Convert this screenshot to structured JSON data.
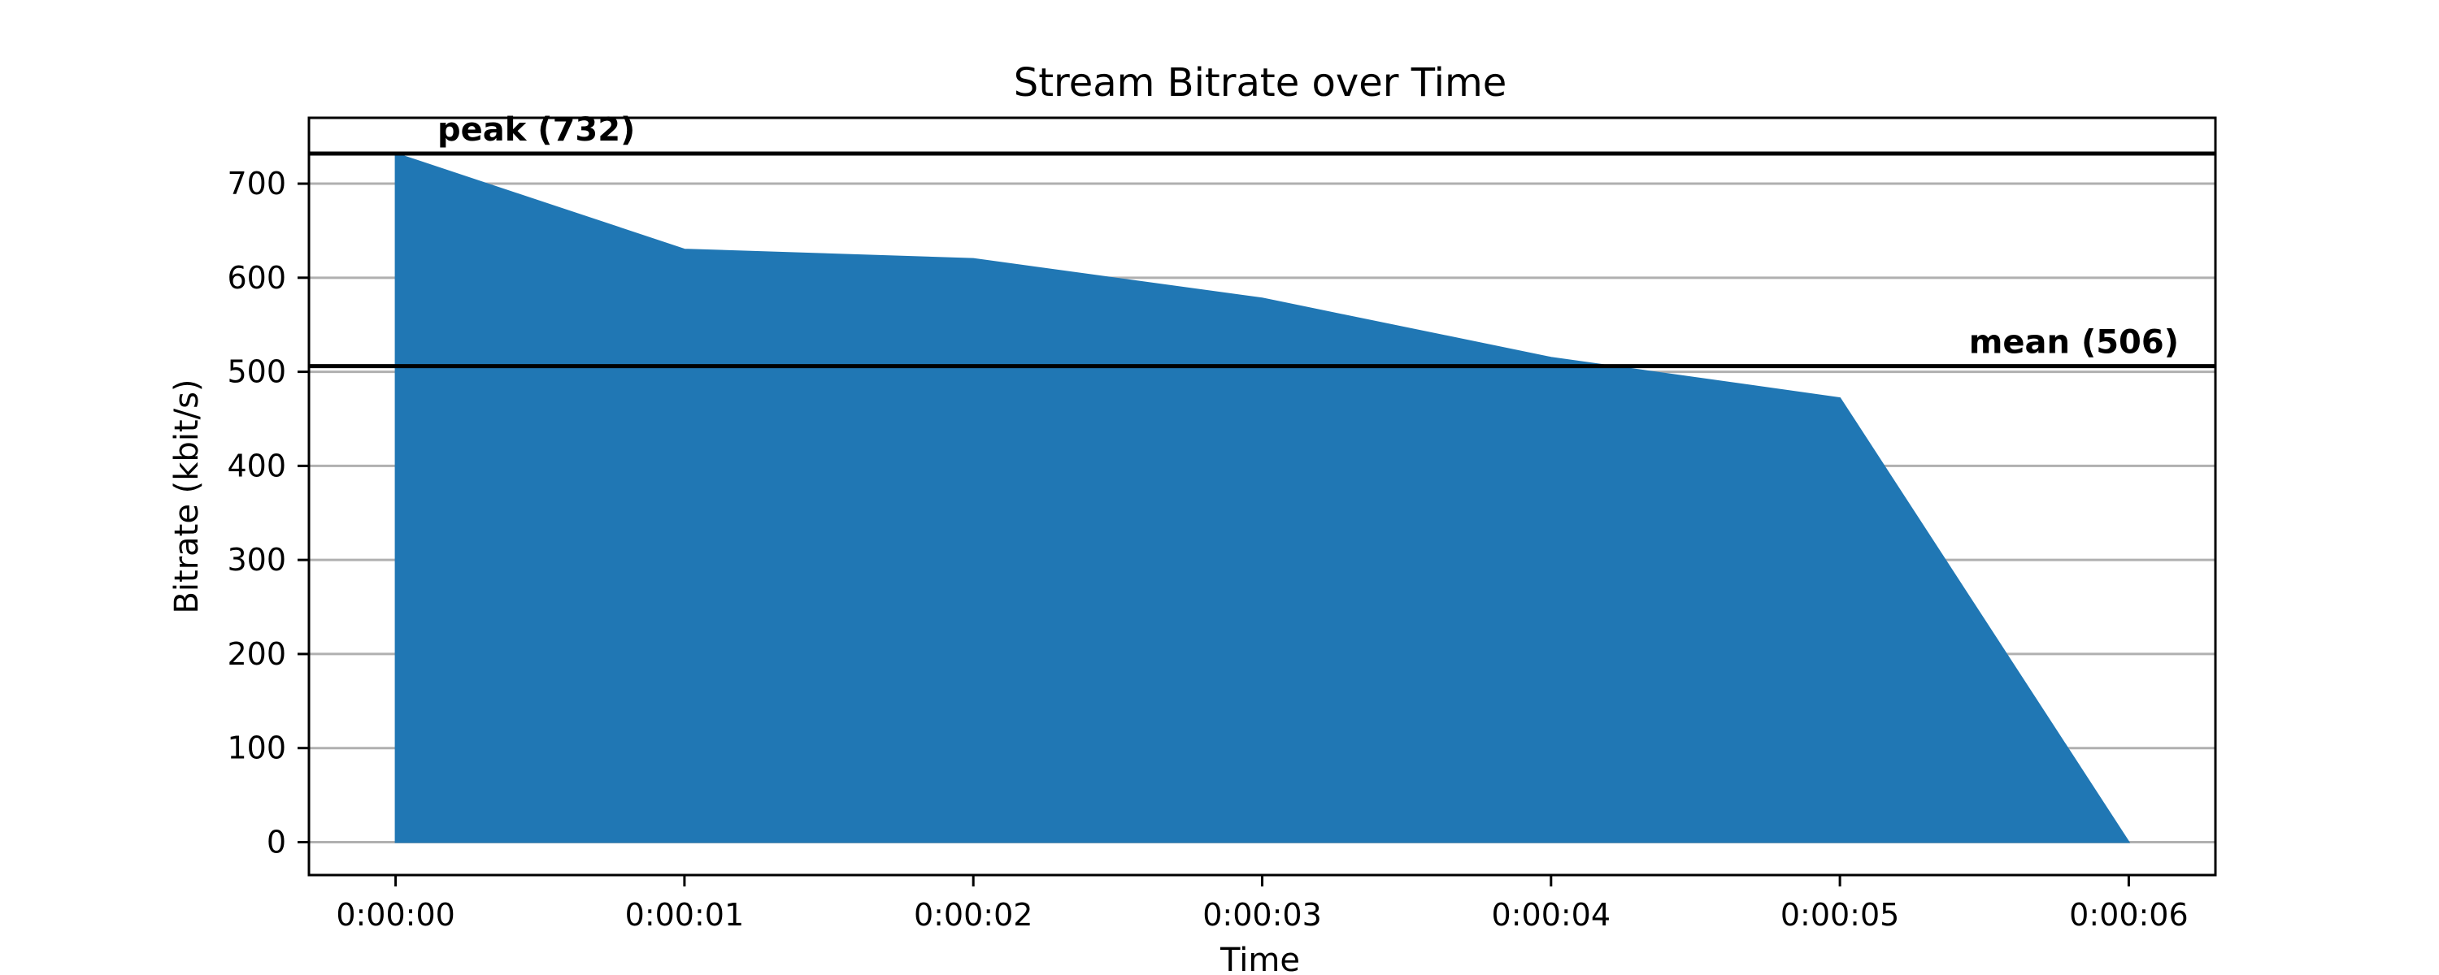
{
  "chart_data": {
    "type": "area",
    "title": "Stream Bitrate over Time",
    "xlabel": "Time",
    "ylabel": "Bitrate (kbit/s)",
    "x_ticks": [
      "0:00:00",
      "0:00:01",
      "0:00:02",
      "0:00:03",
      "0:00:04",
      "0:00:05",
      "0:00:06"
    ],
    "x": [
      0,
      1,
      2,
      3,
      4,
      5,
      6
    ],
    "values": [
      732,
      630,
      620,
      578,
      515,
      472,
      0
    ],
    "y_ticks": [
      0,
      100,
      200,
      300,
      400,
      500,
      600,
      700
    ],
    "xlim": [
      -0.3,
      6.3
    ],
    "ylim": [
      -35,
      770
    ],
    "grid": "horizontal",
    "fill_color": "#2077b4",
    "reference_lines": [
      {
        "label": "peak (732)",
        "value": 732
      },
      {
        "label": "mean (506)",
        "value": 506
      }
    ]
  }
}
